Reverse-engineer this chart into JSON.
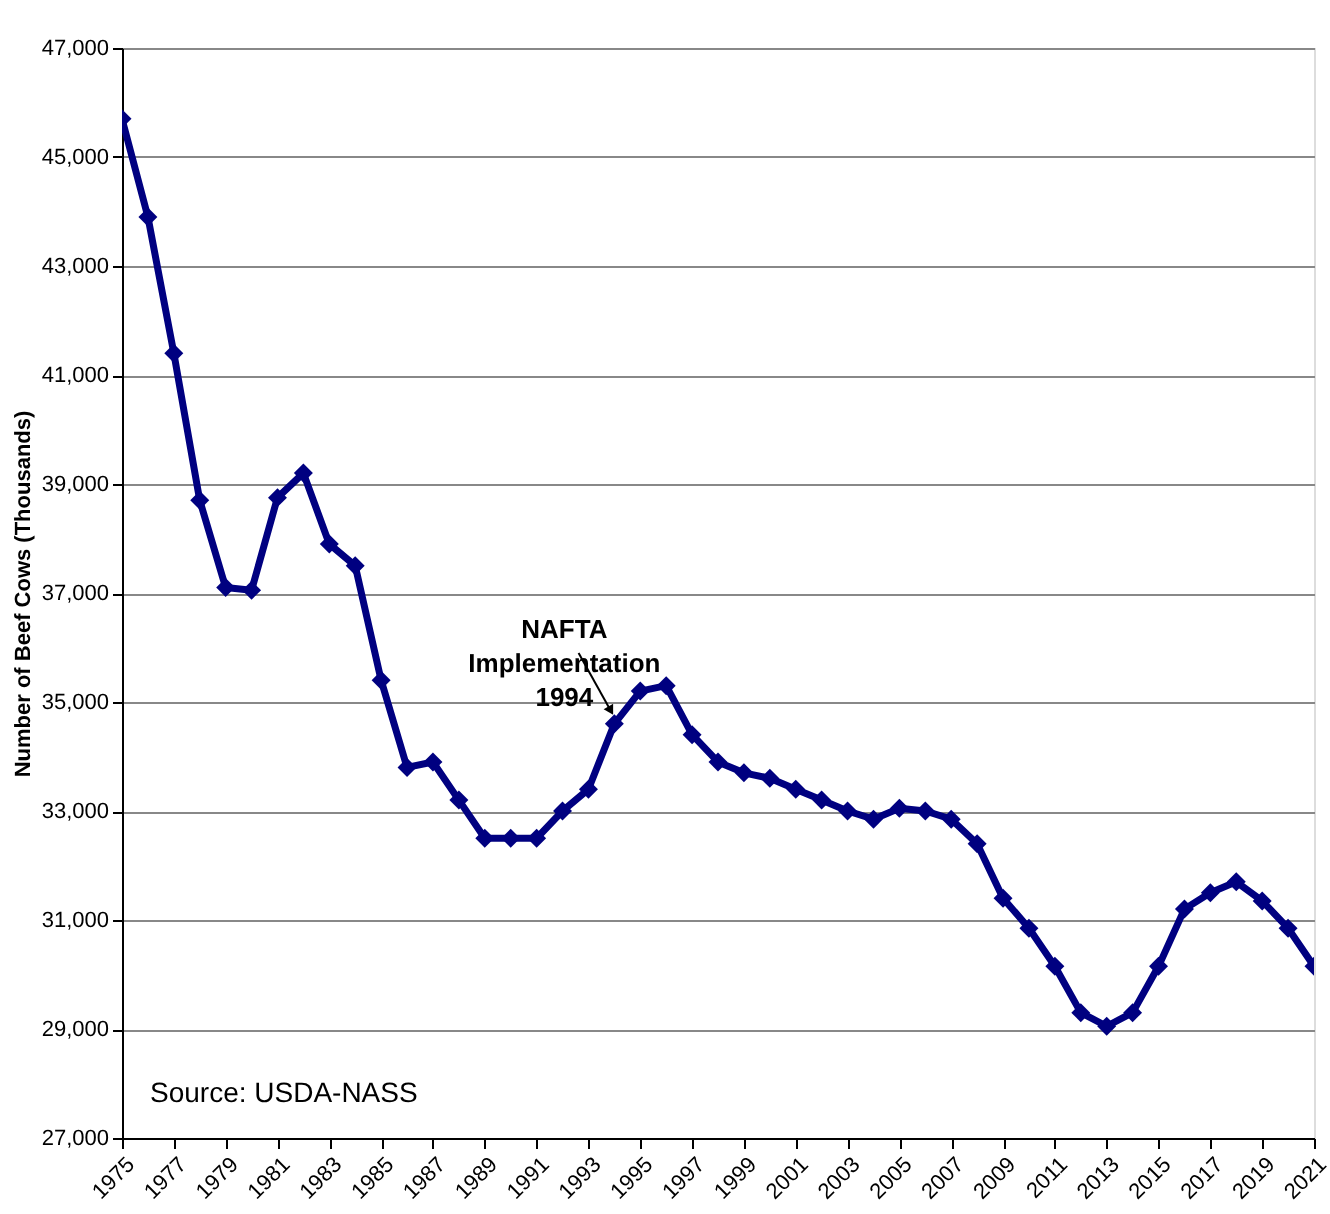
{
  "chart_data": {
    "type": "line",
    "ylabel": "Number of Beef Cows (Thousands)",
    "x": [
      1975,
      1976,
      1977,
      1978,
      1979,
      1980,
      1981,
      1982,
      1983,
      1984,
      1985,
      1986,
      1987,
      1988,
      1989,
      1990,
      1991,
      1992,
      1993,
      1994,
      1995,
      1996,
      1997,
      1998,
      1999,
      2000,
      2001,
      2002,
      2003,
      2004,
      2005,
      2006,
      2007,
      2008,
      2009,
      2010,
      2011,
      2012,
      2013,
      2014,
      2015,
      2016,
      2017,
      2018,
      2019,
      2020,
      2021
    ],
    "series": [
      {
        "color": "#000080",
        "values": [
          45700,
          43900,
          41400,
          38700,
          37100,
          37050,
          38750,
          39200,
          37900,
          37500,
          35400,
          33800,
          33900,
          33200,
          32500,
          32500,
          32500,
          33000,
          33400,
          34600,
          35200,
          35300,
          34400,
          33900,
          33700,
          33600,
          33400,
          33200,
          33000,
          32850,
          33050,
          33000,
          32850,
          32400,
          31400,
          30850,
          30150,
          29300,
          29050,
          29300,
          30150,
          31200,
          31500,
          31700,
          31350,
          30850,
          30150
        ]
      }
    ],
    "xlim": [
      1975,
      2021
    ],
    "xticks": [
      1975,
      1977,
      1979,
      1981,
      1983,
      1985,
      1987,
      1989,
      1991,
      1993,
      1995,
      1997,
      1999,
      2001,
      2003,
      2005,
      2007,
      2009,
      2011,
      2013,
      2015,
      2017,
      2019,
      2021
    ],
    "ylim": [
      27000,
      47000
    ],
    "yticks": [
      {
        "value": 27000,
        "label": "27,000"
      },
      {
        "value": 29000,
        "label": "29,000"
      },
      {
        "value": 31000,
        "label": "31,000"
      },
      {
        "value": 33000,
        "label": "33,000"
      },
      {
        "value": 35000,
        "label": "35,000"
      },
      {
        "value": 37000,
        "label": "37,000"
      },
      {
        "value": 39000,
        "label": "39,000"
      },
      {
        "value": 41000,
        "label": "41,000"
      },
      {
        "value": 43000,
        "label": "43,000"
      },
      {
        "value": 45000,
        "label": "45,000"
      },
      {
        "value": 47000,
        "label": "47,000"
      }
    ],
    "grid": "y",
    "marker": "diamond",
    "line_style": "solid",
    "annotations": [
      {
        "text": "NAFTA\nImplementation\n1994",
        "x": 1994,
        "y": 34600
      },
      "Source:  USDA-NASS"
    ]
  }
}
